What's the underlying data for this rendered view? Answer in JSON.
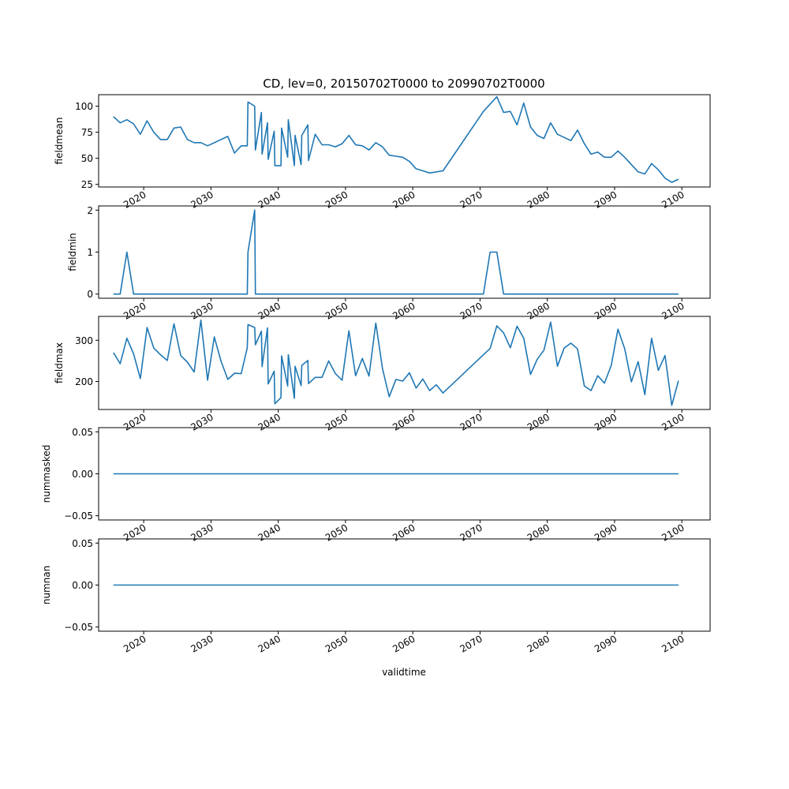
{
  "chart_data": {
    "type": "line",
    "title": "CD, lev=0, 20150702T0000 to 20990702T0000",
    "xlabel": "validtime",
    "x_ticks": [
      2020,
      2030,
      2040,
      2050,
      2060,
      2070,
      2080,
      2090,
      2100
    ],
    "x_tick_labels": [
      "2020",
      "2030",
      "2040",
      "2050",
      "2060",
      "2070",
      "2080",
      "2090",
      "2100"
    ],
    "xlim": [
      2013.3,
      2104.2
    ],
    "panels": [
      {
        "ylabel": "fieldmean",
        "ylim": [
          22.5,
          111
        ],
        "y_ticks": [
          25,
          50,
          75,
          100
        ],
        "y_tick_labels": [
          "25",
          "50",
          "75",
          "100"
        ],
        "points": [
          [
            2015.5,
            90
          ],
          [
            2016.5,
            84
          ],
          [
            2017.5,
            87
          ],
          [
            2018.5,
            83
          ],
          [
            2019.5,
            73
          ],
          [
            2020.5,
            86
          ],
          [
            2021.5,
            75
          ],
          [
            2022.5,
            68
          ],
          [
            2023.5,
            68
          ],
          [
            2024.5,
            79
          ],
          [
            2025.5,
            80
          ],
          [
            2026.5,
            68
          ],
          [
            2027.5,
            65
          ],
          [
            2028.5,
            65
          ],
          [
            2029.5,
            62
          ],
          [
            2032.5,
            71
          ],
          [
            2033.5,
            55
          ],
          [
            2034.5,
            62
          ],
          [
            2035.4,
            62
          ],
          [
            2035.5,
            104
          ],
          [
            2036.5,
            100
          ],
          [
            2036.6,
            58
          ],
          [
            2037.5,
            94
          ],
          [
            2037.6,
            54
          ],
          [
            2038.4,
            84
          ],
          [
            2038.5,
            49
          ],
          [
            2039.4,
            76
          ],
          [
            2039.5,
            43
          ],
          [
            2040.4,
            43
          ],
          [
            2040.5,
            79
          ],
          [
            2041.4,
            51
          ],
          [
            2041.5,
            87
          ],
          [
            2042.4,
            43
          ],
          [
            2042.5,
            72
          ],
          [
            2043.4,
            44
          ],
          [
            2043.5,
            72
          ],
          [
            2044.4,
            82
          ],
          [
            2044.5,
            48
          ],
          [
            2045.5,
            73
          ],
          [
            2046.5,
            63
          ],
          [
            2047.5,
            63
          ],
          [
            2048.5,
            61
          ],
          [
            2049.5,
            64
          ],
          [
            2050.5,
            72
          ],
          [
            2051.5,
            63
          ],
          [
            2052.5,
            62
          ],
          [
            2053.5,
            58
          ],
          [
            2054.5,
            65
          ],
          [
            2055.5,
            61
          ],
          [
            2056.5,
            53
          ],
          [
            2057.5,
            52
          ],
          [
            2058.5,
            51
          ],
          [
            2059.5,
            47
          ],
          [
            2060.5,
            40
          ],
          [
            2061.5,
            38
          ],
          [
            2062.5,
            36
          ],
          [
            2064.5,
            38
          ],
          [
            2070.5,
            95
          ],
          [
            2072.5,
            109
          ],
          [
            2073.5,
            94
          ],
          [
            2074.5,
            95
          ],
          [
            2075.5,
            82
          ],
          [
            2076.5,
            103
          ],
          [
            2077.5,
            80
          ],
          [
            2078.5,
            72
          ],
          [
            2079.5,
            69
          ],
          [
            2080.5,
            84
          ],
          [
            2081.5,
            73
          ],
          [
            2082.5,
            70
          ],
          [
            2083.5,
            67
          ],
          [
            2084.5,
            77
          ],
          [
            2085.5,
            64
          ],
          [
            2086.5,
            54
          ],
          [
            2087.5,
            56
          ],
          [
            2088.5,
            51
          ],
          [
            2089.5,
            51
          ],
          [
            2090.5,
            57
          ],
          [
            2091.5,
            51
          ],
          [
            2092.5,
            44
          ],
          [
            2093.5,
            37
          ],
          [
            2094.5,
            35
          ],
          [
            2095.5,
            45
          ],
          [
            2096.5,
            39
          ],
          [
            2097.5,
            31
          ],
          [
            2098.5,
            27
          ],
          [
            2099.5,
            30
          ]
        ]
      },
      {
        "ylabel": "fieldmin",
        "ylim": [
          -0.1,
          2.1
        ],
        "y_ticks": [
          0,
          1,
          2
        ],
        "y_tick_labels": [
          "0",
          "1",
          "2"
        ],
        "points": [
          [
            2015.5,
            0
          ],
          [
            2016.5,
            0
          ],
          [
            2017.5,
            1
          ],
          [
            2018.5,
            0
          ],
          [
            2035.4,
            0
          ],
          [
            2035.5,
            1
          ],
          [
            2036.5,
            2
          ],
          [
            2036.6,
            0
          ],
          [
            2070.5,
            0
          ],
          [
            2071.5,
            1
          ],
          [
            2072.5,
            1
          ],
          [
            2073.5,
            0
          ],
          [
            2099.5,
            0
          ]
        ]
      },
      {
        "ylabel": "fieldmax",
        "ylim": [
          132,
          358
        ],
        "y_ticks": [
          200,
          300
        ],
        "y_tick_labels": [
          "200",
          "300"
        ],
        "points": [
          [
            2015.5,
            270
          ],
          [
            2016.5,
            243
          ],
          [
            2017.5,
            305
          ],
          [
            2018.5,
            267
          ],
          [
            2019.5,
            207
          ],
          [
            2020.5,
            331
          ],
          [
            2021.5,
            281
          ],
          [
            2022.5,
            265
          ],
          [
            2023.5,
            251
          ],
          [
            2024.5,
            340
          ],
          [
            2025.5,
            263
          ],
          [
            2026.5,
            247
          ],
          [
            2027.5,
            223
          ],
          [
            2028.5,
            349
          ],
          [
            2029.5,
            203
          ],
          [
            2030.5,
            308
          ],
          [
            2031.5,
            249
          ],
          [
            2032.5,
            205
          ],
          [
            2033.5,
            220
          ],
          [
            2034.5,
            219
          ],
          [
            2035.4,
            282
          ],
          [
            2035.5,
            338
          ],
          [
            2036.5,
            331
          ],
          [
            2036.6,
            289
          ],
          [
            2037.5,
            322
          ],
          [
            2037.6,
            236
          ],
          [
            2038.4,
            330
          ],
          [
            2038.5,
            194
          ],
          [
            2039.4,
            225
          ],
          [
            2039.5,
            146
          ],
          [
            2040.4,
            161
          ],
          [
            2040.5,
            262
          ],
          [
            2041.4,
            189
          ],
          [
            2041.5,
            265
          ],
          [
            2042.4,
            159
          ],
          [
            2042.5,
            237
          ],
          [
            2043.4,
            190
          ],
          [
            2043.5,
            239
          ],
          [
            2044.4,
            251
          ],
          [
            2044.5,
            195
          ],
          [
            2045.5,
            210
          ],
          [
            2046.5,
            210
          ],
          [
            2047.5,
            250
          ],
          [
            2048.5,
            219
          ],
          [
            2049.5,
            203
          ],
          [
            2050.5,
            323
          ],
          [
            2051.5,
            214
          ],
          [
            2052.5,
            256
          ],
          [
            2053.5,
            213
          ],
          [
            2054.5,
            342
          ],
          [
            2055.5,
            231
          ],
          [
            2056.5,
            163
          ],
          [
            2057.5,
            205
          ],
          [
            2058.5,
            201
          ],
          [
            2059.5,
            221
          ],
          [
            2060.5,
            184
          ],
          [
            2061.5,
            206
          ],
          [
            2062.5,
            178
          ],
          [
            2063.5,
            192
          ],
          [
            2064.5,
            172
          ],
          [
            2070.5,
            265
          ],
          [
            2071.5,
            280
          ],
          [
            2072.5,
            335
          ],
          [
            2073.5,
            318
          ],
          [
            2074.5,
            282
          ],
          [
            2075.5,
            334
          ],
          [
            2076.5,
            305
          ],
          [
            2077.5,
            217
          ],
          [
            2078.5,
            254
          ],
          [
            2079.5,
            276
          ],
          [
            2080.5,
            344
          ],
          [
            2081.5,
            237
          ],
          [
            2082.5,
            281
          ],
          [
            2083.5,
            293
          ],
          [
            2084.5,
            279
          ],
          [
            2085.5,
            189
          ],
          [
            2086.5,
            178
          ],
          [
            2087.5,
            214
          ],
          [
            2088.5,
            196
          ],
          [
            2089.5,
            239
          ],
          [
            2090.5,
            327
          ],
          [
            2091.5,
            280
          ],
          [
            2092.5,
            199
          ],
          [
            2093.5,
            248
          ],
          [
            2094.5,
            168
          ],
          [
            2095.5,
            305
          ],
          [
            2096.5,
            227
          ],
          [
            2097.5,
            263
          ],
          [
            2098.5,
            142
          ],
          [
            2099.5,
            202
          ]
        ]
      },
      {
        "ylabel": "nummasked",
        "ylim": [
          -0.055,
          0.055
        ],
        "y_ticks": [
          0.05,
          0,
          -0.05
        ],
        "y_tick_labels": [
          "0.05",
          "0.00",
          "−0.05"
        ],
        "points": [
          [
            2015.5,
            0
          ],
          [
            2099.5,
            0
          ]
        ]
      },
      {
        "ylabel": "numnan",
        "ylim": [
          -0.055,
          0.055
        ],
        "y_ticks": [
          0.05,
          0,
          -0.05
        ],
        "y_tick_labels": [
          "0.05",
          "0.00",
          "−0.05"
        ],
        "points": [
          [
            2015.5,
            0
          ],
          [
            2099.5,
            0
          ]
        ]
      }
    ]
  }
}
